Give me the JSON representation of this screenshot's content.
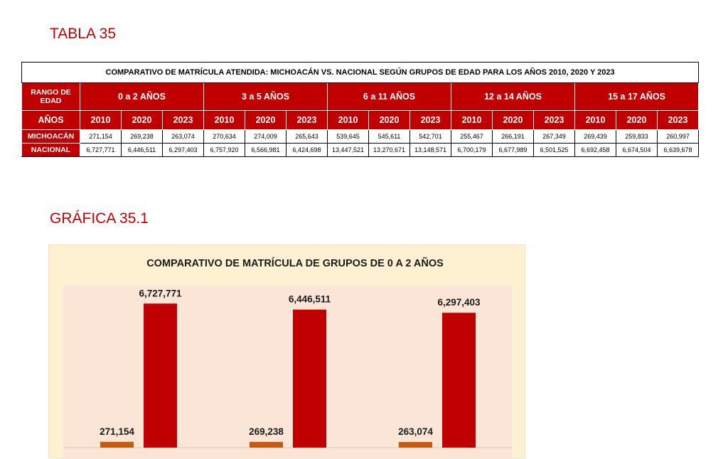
{
  "table_heading": "TABLA 35",
  "table": {
    "caption": "COMPARATIVO DE MATRÍCULA ATENDIDA: MICHOACÁN VS. NACIONAL SEGÚN GRUPOS DE EDAD PARA LOS AÑOS 2010, 2020 Y 2023",
    "range_label": "RANGO DE EDAD",
    "years_label": "AÑOS",
    "groups": [
      "0 a 2 AÑOS",
      "3 a 5 AÑOS",
      "6 a 11 AÑOS",
      "12 a 14 AÑOS",
      "15 a 17 AÑOS"
    ],
    "years": [
      "2010",
      "2020",
      "2023"
    ],
    "rows": [
      {
        "label": "MICHOACÁN",
        "values": [
          "271,154",
          "269,238",
          "263,074",
          "270,634",
          "274,009",
          "265,643",
          "539,645",
          "545,611",
          "542,701",
          "255,467",
          "266,191",
          "267,349",
          "269,439",
          "259,833",
          "260,997"
        ]
      },
      {
        "label": "NACIONAL",
        "values": [
          "6,727,771",
          "6,446,511",
          "6,297,403",
          "6,757,920",
          "6,566,981",
          "6,424,698",
          "13,447,521",
          "13,270,671",
          "13,148,571",
          "6,700,179",
          "6,677,989",
          "6,501,525",
          "6,692,458",
          "6,674,504",
          "6,639,678"
        ]
      }
    ]
  },
  "chart_heading": "GRÁFICA 35.1",
  "chart_data": {
    "type": "bar",
    "title": "COMPARATIVO DE MATRÍCULA DE GRUPOS DE 0 A 2 AÑOS",
    "categories": [
      "",
      "",
      ""
    ],
    "series": [
      {
        "values": [
          271154,
          269238,
          263074
        ],
        "labels": [
          "271,154",
          "269,238",
          "263,074"
        ],
        "color": "#c55a11"
      },
      {
        "values": [
          6727771,
          6446511,
          6297403
        ],
        "labels": [
          "6,727,771",
          "6,446,511",
          "6,297,403"
        ],
        "color": "#c00000"
      }
    ],
    "ylim": [
      0,
      7400000
    ],
    "grid": false,
    "legend": "none"
  },
  "colors": {
    "accent": "#c00000",
    "panel_bg": "#fdf1d2",
    "plot_bg": "#fbe5d6"
  }
}
